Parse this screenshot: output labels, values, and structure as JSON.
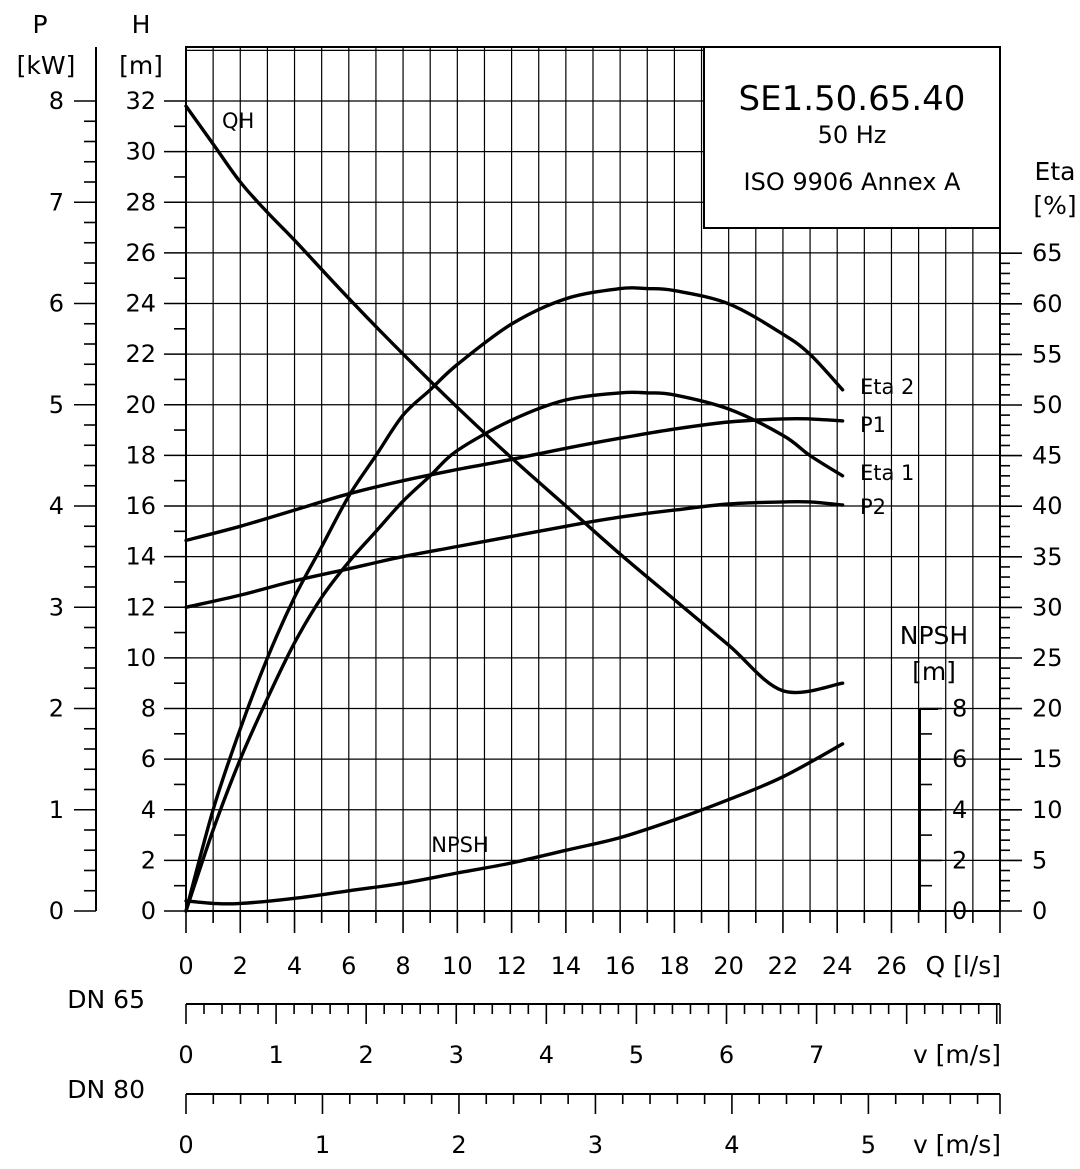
{
  "chart_data": {
    "type": "line",
    "title": "SE1.50.65.40",
    "subtitle_lines": [
      "50 Hz",
      "ISO 9906 Annex A"
    ],
    "x_axis": {
      "label": "Q [l/s]",
      "range": [
        0,
        30
      ],
      "ticks": [
        0,
        2,
        4,
        6,
        8,
        10,
        12,
        14,
        16,
        18,
        20,
        22,
        24,
        26
      ]
    },
    "y_axis_h": {
      "label_top": "H",
      "label_unit": "[m]",
      "range": [
        0,
        32
      ],
      "ticks": [
        0,
        2,
        4,
        6,
        8,
        10,
        12,
        14,
        16,
        18,
        20,
        22,
        24,
        26,
        28,
        30,
        32
      ]
    },
    "y_axis_p": {
      "label_top": "P",
      "label_unit": "[kW]",
      "range": [
        0,
        8
      ],
      "ticks": [
        0,
        1,
        2,
        3,
        4,
        5,
        6,
        7,
        8
      ]
    },
    "y_axis_eta": {
      "label_top": "Eta",
      "label_unit": "[%]",
      "range": [
        0,
        65
      ],
      "ticks": [
        0,
        5,
        10,
        15,
        20,
        25,
        30,
        35,
        40,
        45,
        50,
        55,
        60,
        65
      ]
    },
    "y_axis_npsh": {
      "label_top": "NPSH",
      "label_unit": "[m]",
      "range": [
        0,
        8
      ],
      "ticks": [
        0,
        2,
        4,
        6,
        8
      ]
    },
    "velocity_scales": [
      {
        "label": "DN 65",
        "unit_label": "v [m/s]",
        "ticks": [
          0,
          1,
          2,
          3,
          4,
          5,
          6,
          7
        ],
        "q_per_unit": 3.32
      },
      {
        "label": "DN 80",
        "unit_label": "v [m/s]",
        "ticks": [
          0,
          1,
          2,
          3,
          4,
          5
        ],
        "q_per_unit": 5.03
      }
    ],
    "grid": true,
    "series": [
      {
        "name": "QH",
        "axis": "H",
        "x": [
          0,
          1,
          2,
          3,
          4,
          6,
          8,
          10,
          12,
          14,
          16,
          18,
          20,
          22,
          24.2
        ],
        "y": [
          31.8,
          30.3,
          28.8,
          27.6,
          26.5,
          24.2,
          22.0,
          19.9,
          17.9,
          16.0,
          14.1,
          12.3,
          10.5,
          8.7,
          9.0
        ]
      },
      {
        "name": "Eta 2",
        "axis": "Eta",
        "x": [
          0,
          1,
          2,
          3,
          4,
          5,
          6,
          7,
          8,
          9,
          10,
          12,
          14,
          16,
          17,
          18,
          20,
          22,
          23,
          24.2
        ],
        "y": [
          0,
          10,
          18,
          25,
          31,
          36,
          41,
          45,
          49,
          51.5,
          54,
          58,
          60.5,
          61.5,
          61.5,
          61.3,
          60,
          57,
          55,
          51.5
        ]
      },
      {
        "name": "Eta 1",
        "axis": "Eta",
        "x": [
          0,
          1,
          2,
          3,
          4,
          5,
          6,
          7,
          8,
          9,
          10,
          12,
          14,
          16,
          17,
          18,
          20,
          22,
          23,
          24.2
        ],
        "y": [
          0,
          8,
          15,
          21,
          26.5,
          31,
          34.5,
          37.5,
          40.5,
          43,
          45.5,
          48.5,
          50.5,
          51.2,
          51.2,
          51,
          49.6,
          47,
          45,
          43
        ]
      },
      {
        "name": "P1",
        "axis": "P",
        "x": [
          0,
          2,
          4,
          6,
          8,
          10,
          12,
          14,
          16,
          18,
          20,
          22,
          23,
          24.2
        ],
        "y": [
          3.66,
          3.8,
          3.96,
          4.12,
          4.25,
          4.36,
          4.46,
          4.57,
          4.67,
          4.76,
          4.83,
          4.86,
          4.86,
          4.84
        ]
      },
      {
        "name": "P2",
        "axis": "P",
        "x": [
          0,
          2,
          4,
          6,
          8,
          10,
          12,
          14,
          16,
          18,
          20,
          22,
          23,
          24.2
        ],
        "y": [
          3.0,
          3.12,
          3.26,
          3.38,
          3.5,
          3.6,
          3.7,
          3.8,
          3.89,
          3.96,
          4.02,
          4.04,
          4.04,
          4.01
        ]
      },
      {
        "name": "NPSH",
        "axis": "H",
        "x": [
          0,
          1,
          2,
          4,
          6,
          8,
          10,
          12,
          14,
          16,
          18,
          20,
          22,
          24.2
        ],
        "y": [
          0.4,
          0.3,
          0.3,
          0.5,
          0.8,
          1.1,
          1.5,
          1.9,
          2.4,
          2.9,
          3.6,
          4.4,
          5.3,
          6.6
        ]
      }
    ]
  }
}
